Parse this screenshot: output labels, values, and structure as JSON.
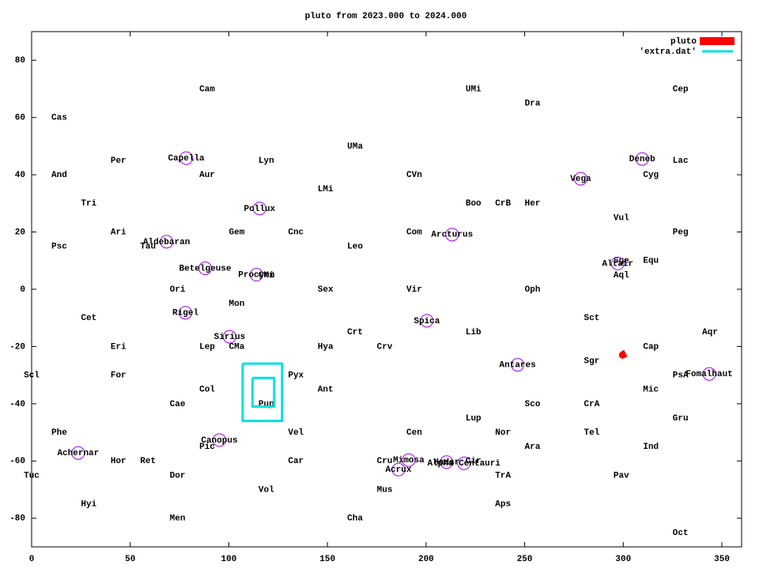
{
  "chart_data": {
    "type": "skymap",
    "title": "pluto from 2023.000 to 2024.000",
    "xlim": [
      0,
      360
    ],
    "ylim": [
      -90,
      90
    ],
    "xticks": [
      0,
      50,
      100,
      150,
      200,
      250,
      300,
      350
    ],
    "yticks": [
      -80,
      -60,
      -40,
      -20,
      0,
      20,
      40,
      60,
      80
    ],
    "legend": "top-right",
    "star_color": "#a000ff",
    "series": [
      {
        "name": "pluto",
        "color": "#ff0000",
        "style": "thick",
        "x": [
          301.2,
          300.4,
          299.8,
          299.6,
          300.2,
          301.1
        ],
        "y": [
          -22.3,
          -22.6,
          -22.9,
          -23.0,
          -22.8,
          -22.5
        ]
      },
      {
        "name": "'extra.dat'",
        "color": "#00e0e0",
        "style": "line",
        "x": [
          107,
          127,
          127,
          107,
          107,
          null,
          112,
          123,
          123,
          112,
          112
        ],
        "y": [
          -26,
          -26,
          -46,
          -46,
          -26,
          null,
          -31,
          -31,
          -41,
          -41,
          -31
        ]
      }
    ],
    "constellations": [
      {
        "text": "Cam",
        "x": 89,
        "y": 70
      },
      {
        "text": "Cas",
        "x": 14,
        "y": 60
      },
      {
        "text": "UMi",
        "x": 224,
        "y": 70
      },
      {
        "text": "Dra",
        "x": 254,
        "y": 65
      },
      {
        "text": "Cep",
        "x": 329,
        "y": 70
      },
      {
        "text": "UMa",
        "x": 164,
        "y": 50
      },
      {
        "text": "Per",
        "x": 44,
        "y": 45
      },
      {
        "text": "Lyn",
        "x": 119,
        "y": 45
      },
      {
        "text": "Lac",
        "x": 329,
        "y": 45
      },
      {
        "text": "And",
        "x": 14,
        "y": 40
      },
      {
        "text": "Aur",
        "x": 89,
        "y": 40
      },
      {
        "text": "CVn",
        "x": 194,
        "y": 40
      },
      {
        "text": "Cyg",
        "x": 314,
        "y": 40
      },
      {
        "text": "LMi",
        "x": 149,
        "y": 35
      },
      {
        "text": "Tri",
        "x": 29,
        "y": 30
      },
      {
        "text": "Boo",
        "x": 224,
        "y": 30
      },
      {
        "text": "CrB",
        "x": 239,
        "y": 30
      },
      {
        "text": "Her",
        "x": 254,
        "y": 30
      },
      {
        "text": "Vul",
        "x": 299,
        "y": 25
      },
      {
        "text": "Ari",
        "x": 44,
        "y": 20
      },
      {
        "text": "Gem",
        "x": 104,
        "y": 20
      },
      {
        "text": "Cnc",
        "x": 134,
        "y": 20
      },
      {
        "text": "Com",
        "x": 194,
        "y": 20
      },
      {
        "text": "Peg",
        "x": 329,
        "y": 20
      },
      {
        "text": "Psc",
        "x": 14,
        "y": 15
      },
      {
        "text": "Tau",
        "x": 59,
        "y": 15
      },
      {
        "text": "Leo",
        "x": 164,
        "y": 15
      },
      {
        "text": "Sge",
        "x": 299,
        "y": 10
      },
      {
        "text": "Equ",
        "x": 314,
        "y": 10
      },
      {
        "text": "Aql",
        "x": 299,
        "y": 5
      },
      {
        "text": "CMi",
        "x": 119,
        "y": 5
      },
      {
        "text": "Ori",
        "x": 74,
        "y": 0
      },
      {
        "text": "Sex",
        "x": 149,
        "y": 0
      },
      {
        "text": "Vir",
        "x": 194,
        "y": 0
      },
      {
        "text": "Oph",
        "x": 254,
        "y": 0
      },
      {
        "text": "Mon",
        "x": 104,
        "y": -5
      },
      {
        "text": "Cet",
        "x": 29,
        "y": -10
      },
      {
        "text": "Sct",
        "x": 284,
        "y": -10
      },
      {
        "text": "Crt",
        "x": 164,
        "y": -15
      },
      {
        "text": "Lib",
        "x": 224,
        "y": -15
      },
      {
        "text": "Aqr",
        "x": 344,
        "y": -15
      },
      {
        "text": "Eri",
        "x": 44,
        "y": -20
      },
      {
        "text": "Lep",
        "x": 89,
        "y": -20
      },
      {
        "text": "CMa",
        "x": 104,
        "y": -20
      },
      {
        "text": "Hya",
        "x": 149,
        "y": -20
      },
      {
        "text": "Crv",
        "x": 179,
        "y": -20
      },
      {
        "text": "Cap",
        "x": 314,
        "y": -20
      },
      {
        "text": "Sgr",
        "x": 284,
        "y": -25
      },
      {
        "text": "Scl",
        "x": 0,
        "y": -30
      },
      {
        "text": "For",
        "x": 44,
        "y": -30
      },
      {
        "text": "Pyx",
        "x": 134,
        "y": -30
      },
      {
        "text": "PsA",
        "x": 329,
        "y": -30
      },
      {
        "text": "Col",
        "x": 89,
        "y": -35
      },
      {
        "text": "Ant",
        "x": 149,
        "y": -35
      },
      {
        "text": "Mic",
        "x": 314,
        "y": -35
      },
      {
        "text": "Cae",
        "x": 74,
        "y": -40
      },
      {
        "text": "Pup",
        "x": 119,
        "y": -40
      },
      {
        "text": "Sco",
        "x": 254,
        "y": -40
      },
      {
        "text": "CrA",
        "x": 284,
        "y": -40
      },
      {
        "text": "Lup",
        "x": 224,
        "y": -45
      },
      {
        "text": "Gru",
        "x": 329,
        "y": -45
      },
      {
        "text": "Phe",
        "x": 14,
        "y": -50
      },
      {
        "text": "Vel",
        "x": 134,
        "y": -50
      },
      {
        "text": "Cen",
        "x": 194,
        "y": -50
      },
      {
        "text": "Nor",
        "x": 239,
        "y": -50
      },
      {
        "text": "Tel",
        "x": 284,
        "y": -50
      },
      {
        "text": "Pic",
        "x": 89,
        "y": -55
      },
      {
        "text": "Ara",
        "x": 254,
        "y": -55
      },
      {
        "text": "Ind",
        "x": 314,
        "y": -55
      },
      {
        "text": "Hor",
        "x": 44,
        "y": -60
      },
      {
        "text": "Ret",
        "x": 59,
        "y": -60
      },
      {
        "text": "Car",
        "x": 134,
        "y": -60
      },
      {
        "text": "Cru",
        "x": 179,
        "y": -60
      },
      {
        "text": "Cir",
        "x": 224,
        "y": -60
      },
      {
        "text": "Tuc",
        "x": 0,
        "y": -65
      },
      {
        "text": "Dor",
        "x": 74,
        "y": -65
      },
      {
        "text": "TrA",
        "x": 239,
        "y": -65
      },
      {
        "text": "Pav",
        "x": 299,
        "y": -65
      },
      {
        "text": "Vol",
        "x": 119,
        "y": -70
      },
      {
        "text": "Mus",
        "x": 179,
        "y": -70
      },
      {
        "text": "Hyi",
        "x": 29,
        "y": -75
      },
      {
        "text": "Aps",
        "x": 239,
        "y": -75
      },
      {
        "text": "Men",
        "x": 74,
        "y": -80
      },
      {
        "text": "Cha",
        "x": 164,
        "y": -80
      },
      {
        "text": "Oct",
        "x": 329,
        "y": -85
      }
    ],
    "stars": [
      {
        "name": "Capella",
        "x": 78.4,
        "y": 45.8
      },
      {
        "name": "Deneb",
        "x": 309.6,
        "y": 45.5
      },
      {
        "name": "Vega",
        "x": 278.4,
        "y": 38.6
      },
      {
        "name": "Pollux",
        "x": 115.6,
        "y": 28.2
      },
      {
        "name": "Arcturus",
        "x": 213.2,
        "y": 19.1
      },
      {
        "name": "Aldebaran",
        "x": 68.4,
        "y": 16.6
      },
      {
        "name": "Betelgeuse",
        "x": 88,
        "y": 7.3
      },
      {
        "name": "Procyon",
        "x": 114,
        "y": 5.1
      },
      {
        "name": "Altair",
        "x": 297.2,
        "y": 9
      },
      {
        "name": "Rigel",
        "x": 78,
        "y": -8.2
      },
      {
        "name": "Spica",
        "x": 200.4,
        "y": -11
      },
      {
        "name": "Sirius",
        "x": 100.4,
        "y": -16.6
      },
      {
        "name": "Antares",
        "x": 246.4,
        "y": -26.4
      },
      {
        "name": "Fomalhaut",
        "x": 343.6,
        "y": -29.6
      },
      {
        "name": "Canopus",
        "x": 95.2,
        "y": -52.7
      },
      {
        "name": "Achernar",
        "x": 23.6,
        "y": -57.2
      },
      {
        "name": "Mimosa",
        "x": 191.2,
        "y": -59.7
      },
      {
        "name": "Acrux",
        "x": 186,
        "y": -63
      },
      {
        "name": "Hadar",
        "x": 210.4,
        "y": -60.4
      },
      {
        "name": "Alpha Centauri",
        "x": 219.2,
        "y": -60.8
      }
    ]
  }
}
